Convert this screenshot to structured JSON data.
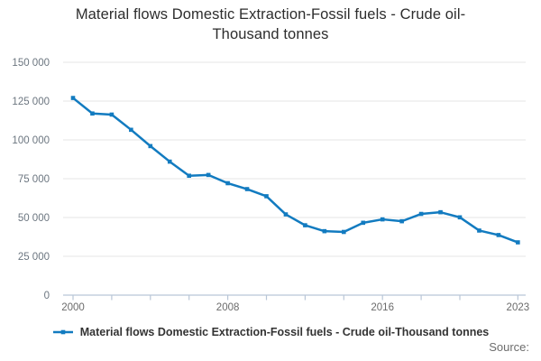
{
  "title": "Material flows Domestic Extraction-Fossil fuels - Crude oil-Thousand tonnes",
  "legend": {
    "label": "Material flows Domestic Extraction-Fossil fuels - Crude oil-Thousand tonnes"
  },
  "footer": {
    "source_label": "Source:"
  },
  "colors": {
    "line": "#127bc0",
    "grid": "#e6e6e6",
    "axis": "#b9c6d7",
    "y_tick_label": "#6c7680",
    "x_tick_label": "#6b6b6b",
    "title_text": "#2d2d2d",
    "legend_text": "#333333",
    "source_text": "#6d6d6d",
    "background": "#ffffff"
  },
  "chart_data": {
    "type": "line",
    "title": "Material flows Domestic Extraction-Fossil fuels - Crude oil-Thousand tonnes",
    "series_name": "Material flows Domestic Extraction-Fossil fuels - Crude oil-Thousand tonnes",
    "xlabel": "",
    "ylabel": "",
    "x": [
      2000,
      2001,
      2002,
      2003,
      2004,
      2005,
      2006,
      2007,
      2008,
      2009,
      2010,
      2011,
      2012,
      2013,
      2014,
      2015,
      2016,
      2017,
      2018,
      2019,
      2020,
      2021,
      2022,
      2023
    ],
    "values": [
      127000,
      117000,
      116300,
      106500,
      96000,
      86000,
      76900,
      77400,
      72100,
      68300,
      63700,
      52000,
      45000,
      41200,
      40700,
      46600,
      48800,
      47600,
      52300,
      53400,
      50100,
      41600,
      38700,
      34000
    ],
    "ylim": [
      0,
      150000
    ],
    "grid": true,
    "legend_position": "bottom",
    "marker": "square",
    "y_ticks": [
      {
        "value": 0,
        "label": "0"
      },
      {
        "value": 25000,
        "label": "25 000"
      },
      {
        "value": 50000,
        "label": "50 000"
      },
      {
        "value": 75000,
        "label": "75 000"
      },
      {
        "value": 100000,
        "label": "100 000"
      },
      {
        "value": 125000,
        "label": "125 000"
      },
      {
        "value": 150000,
        "label": "150 000"
      }
    ],
    "x_tick_years": [
      2000,
      2002,
      2004,
      2006,
      2008,
      2010,
      2012,
      2014,
      2016,
      2018,
      2020,
      2023
    ],
    "x_labeled_ticks": [
      {
        "year": 2000,
        "label": "2000"
      },
      {
        "year": 2008,
        "label": "2008"
      },
      {
        "year": 2016,
        "label": "2016"
      },
      {
        "year": 2023,
        "label": "2023"
      }
    ]
  }
}
